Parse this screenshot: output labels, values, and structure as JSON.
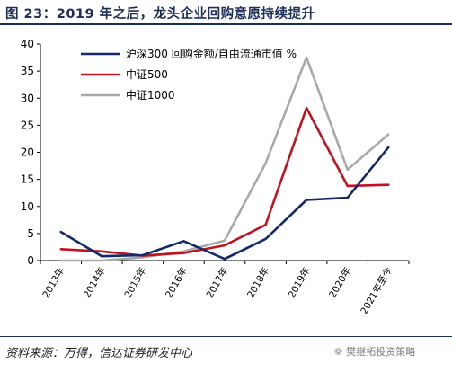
{
  "header": {
    "title": "图 23：2019 年之后，龙头企业回购意愿持续提升"
  },
  "footer": {
    "source": "资料来源：万得，信达证券研发中心",
    "watermark": "樊继拓投资策略"
  },
  "colors": {
    "series_a": "#13296b",
    "series_b": "#c0121f",
    "series_c": "#a9a9a9",
    "title": "#1b2e5a"
  },
  "chart_data": {
    "type": "line",
    "x": [
      "2013年",
      "2014年",
      "2015年",
      "2016年",
      "2017年",
      "2018年",
      "2019年",
      "2020年",
      "2021年至今"
    ],
    "ylim": [
      0,
      40
    ],
    "yticks": [
      0,
      5,
      10,
      15,
      20,
      25,
      30,
      35,
      40
    ],
    "grid": false,
    "legend_position": "top-left",
    "series": [
      {
        "name": "沪深300 回购金额/自由流通市值 %",
        "color": "#13296b",
        "values": [
          5.3,
          0.8,
          1.0,
          3.6,
          0.3,
          4.0,
          11.2,
          11.6,
          20.9
        ]
      },
      {
        "name": "中证500",
        "color": "#c0121f",
        "values": [
          2.1,
          1.7,
          0.9,
          1.4,
          2.8,
          6.6,
          28.2,
          13.8,
          14.0
        ]
      },
      {
        "name": "中证1000",
        "color": "#a9a9a9",
        "values": [
          0.0,
          0.0,
          0.6,
          1.7,
          3.7,
          18.0,
          37.5,
          16.8,
          23.3
        ]
      }
    ]
  }
}
